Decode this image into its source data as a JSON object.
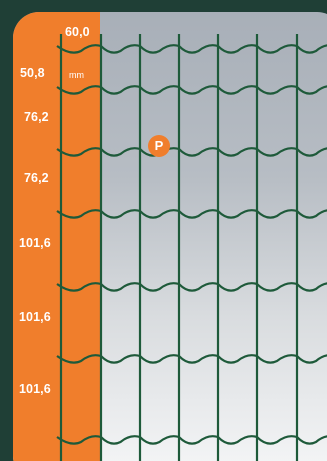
{
  "top_dimension": "60,0",
  "unit": "mm",
  "row_dimensions": [
    "50,8",
    "76,2",
    "76,2",
    "101,6",
    "101,6",
    "101,6"
  ],
  "badge_letter": "P",
  "colors": {
    "background": "#1f3f36",
    "strip": "#f07e2c",
    "wire": "#1e5a3a",
    "badge": "#f07e2c"
  }
}
